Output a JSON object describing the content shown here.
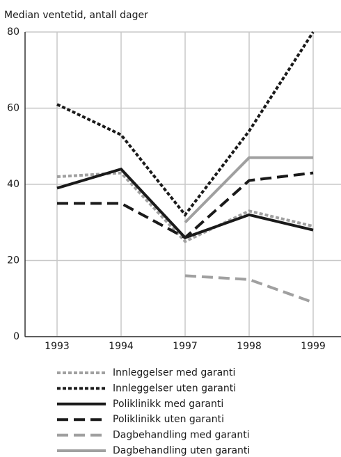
{
  "chart_data": {
    "type": "line",
    "title": "Median ventetid, antall dager",
    "categories": [
      "1993",
      "1994",
      "1997",
      "1998",
      "1999"
    ],
    "ylim": [
      0,
      80
    ],
    "yticks": [
      0,
      20,
      40,
      60,
      80
    ],
    "grid": true,
    "series": [
      {
        "name": "Innleggelser med garanti",
        "color": "#a0a0a0",
        "style": "dotted",
        "values": [
          42,
          43,
          25,
          33,
          29
        ]
      },
      {
        "name": "Innleggelser uten garanti",
        "color": "#1a1a1a",
        "style": "dotted",
        "values": [
          61,
          53,
          32,
          54,
          80
        ]
      },
      {
        "name": "Poliklinikk med garanti",
        "color": "#1a1a1a",
        "style": "solid",
        "values": [
          39,
          44,
          26,
          32,
          28
        ]
      },
      {
        "name": "Poliklinikk uten garanti",
        "color": "#1a1a1a",
        "style": "dashed",
        "values": [
          35,
          35,
          26,
          41,
          43
        ]
      },
      {
        "name": "Dagbehandling med garanti",
        "color": "#a0a0a0",
        "style": "dashed",
        "values": [
          null,
          null,
          16,
          15,
          9
        ]
      },
      {
        "name": "Dagbehandling uten garanti",
        "color": "#a0a0a0",
        "style": "solid",
        "values": [
          null,
          null,
          30,
          47,
          47
        ]
      }
    ]
  }
}
